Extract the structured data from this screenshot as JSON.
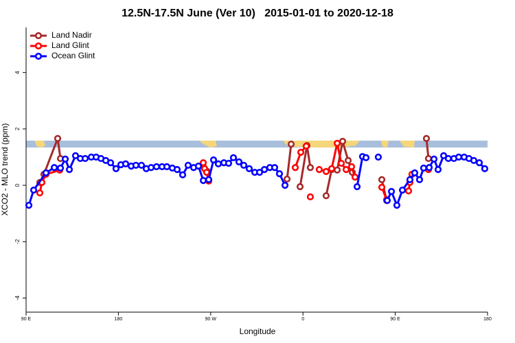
{
  "chart_data": {
    "type": "line",
    "title": "12.5N-17.5N June (Ver 10)   2015-01-01 to 2020-12-18",
    "xlabel": "Longitude",
    "ylabel": "XCO2 - MLO trend (ppm)",
    "xlim": [
      90,
      540
    ],
    "ylim": [
      -4.5,
      5.6
    ],
    "xticks": [
      {
        "value": 90,
        "label": "90 E"
      },
      {
        "value": 180,
        "label": "180"
      },
      {
        "value": 270,
        "label": "90 W"
      },
      {
        "value": 360,
        "label": "0"
      },
      {
        "value": 450,
        "label": "90 E"
      },
      {
        "value": 540,
        "label": "180"
      }
    ],
    "yticks": [
      -4,
      -2,
      0,
      2,
      4
    ],
    "legend": "topleft",
    "series": [
      {
        "name": "Land Nadir",
        "color": "#a52a2a",
        "x": [
          103.4,
          107.4,
          120.8,
          123.5,
          null,
          262.8,
          266.8,
          null,
          344.5,
          348.5,
          null,
          357.2,
          363.9,
          367.2,
          null,
          382.6,
          388,
          393.4,
          398.7,
          404.1,
          408.1,
          null,
          436.9,
          441.6,
          null,
          480.4,
          482.4
        ],
        "values": [
          0.1,
          0.39,
          1.66,
          0.95,
          null,
          0.66,
          0.49,
          null,
          0.22,
          1.46,
          null,
          -0.05,
          1.41,
          0.63,
          null,
          -0.37,
          0.56,
          0.54,
          1.56,
          0.88,
          0.46,
          null,
          0.2,
          -0.54,
          null,
          1.66,
          0.95
        ]
      },
      {
        "name": "Land Glint",
        "color": "#ff0000",
        "x": [
          103.4,
          105.4,
          109.4,
          122.8,
          null,
          262.8,
          264.1,
          266.1,
          268.1,
          null,
          352.5,
          357.9,
          363.2,
          null,
          367.2,
          null,
          375.9,
          382.6,
          388,
          393.4,
          397.4,
          402.1,
          407.4,
          410.8,
          null,
          436.9,
          441.6,
          null,
          463,
          464.3,
          466.3,
          null,
          482.4
        ],
        "values": [
          -0.27,
          0.1,
          0.39,
          0.54,
          null,
          0.8,
          0.59,
          0.46,
          0.15,
          null,
          0.63,
          1.17,
          1.39,
          null,
          -0.41,
          null,
          0.56,
          0.49,
          0.59,
          1.49,
          0.78,
          0.56,
          0.66,
          0.29,
          null,
          -0.07,
          -0.51,
          null,
          -0.2,
          0.1,
          0.39,
          null,
          0.56
        ]
      },
      {
        "name": "Ocean Glint",
        "color": "#0000ff",
        "x": [
          92.7,
          97.4,
          109.4,
          117.5,
          123.5,
          128.2,
          132.2,
          138.2,
          142.9,
          147.6,
          153.6,
          158.3,
          163,
          167.7,
          172.4,
          177.7,
          182.4,
          187.1,
          192.5,
          197.1,
          202.5,
          207.2,
          211.9,
          217.2,
          222.6,
          227.3,
          232.6,
          237.3,
          242.7,
          248,
          253.4,
          258.1,
          262.8,
          268.1,
          272.8,
          277.5,
          282.9,
          287.5,
          292.2,
          297.6,
          302.3,
          307.6,
          313,
          317.7,
          322.4,
          327.7,
          332.4,
          337.1,
          342.5,
          null,
          412.8,
          418.1,
          421.5,
          null,
          433.5,
          null,
          442.2,
          446.3,
          451.6,
          457,
          464.3,
          469,
          473.7,
          477.7,
          483.1,
          487.8,
          491.8,
          497.2,
          501.8,
          507.2,
          511.9,
          517.2,
          521.9,
          526.6,
          532,
          537.3
        ],
        "values": [
          -0.71,
          -0.17,
          0.44,
          0.63,
          0.61,
          0.93,
          0.56,
          1.05,
          0.95,
          0.95,
          1,
          1,
          0.95,
          0.88,
          0.8,
          0.59,
          0.73,
          0.76,
          0.68,
          0.71,
          0.71,
          0.59,
          0.63,
          0.66,
          0.66,
          0.66,
          0.61,
          0.56,
          0.37,
          0.71,
          0.63,
          0.68,
          0.17,
          0.2,
          0.9,
          0.76,
          0.8,
          0.78,
          0.98,
          0.83,
          0.71,
          0.59,
          0.46,
          0.46,
          0.56,
          0.63,
          0.63,
          0.41,
          0,
          null,
          -0.05,
          1.02,
          0.98,
          null,
          1,
          null,
          -0.54,
          -0.22,
          -0.71,
          -0.17,
          0.2,
          0.44,
          0.2,
          0.61,
          0.63,
          0.93,
          0.56,
          1.05,
          0.95,
          0.95,
          1,
          1,
          0.95,
          0.88,
          0.8,
          0.59
        ]
      }
    ]
  }
}
